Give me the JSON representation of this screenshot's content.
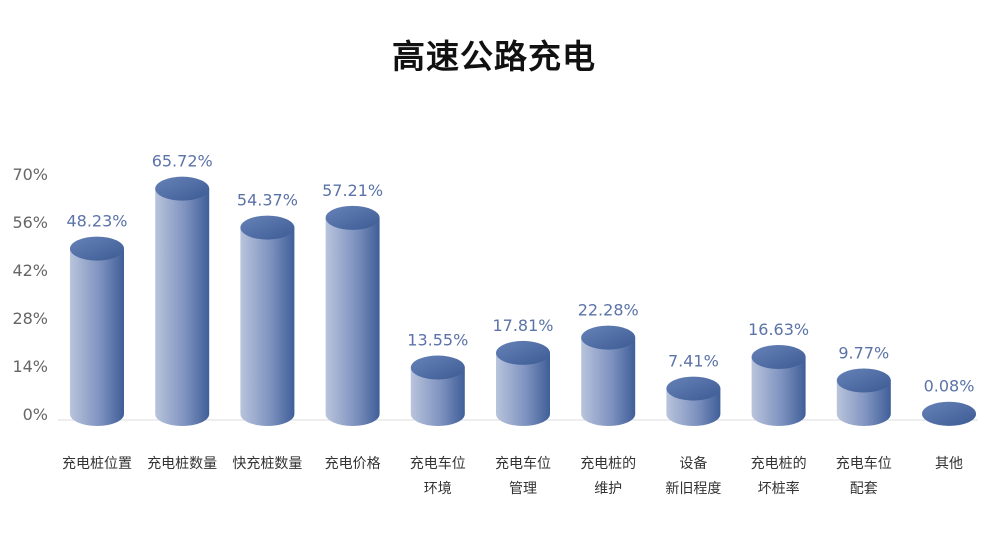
{
  "chart_data": {
    "type": "bar",
    "title": "高速公路充电",
    "xlabel": "",
    "ylabel": "",
    "ylim": [
      0,
      70
    ],
    "yticks": [
      0,
      14,
      28,
      42,
      56,
      70
    ],
    "ytick_labels": [
      "0%",
      "14%",
      "28%",
      "42%",
      "56%",
      "70%"
    ],
    "categories": [
      [
        "充电桩位置"
      ],
      [
        "充电桩数量"
      ],
      [
        "快充桩数量"
      ],
      [
        "充电价格"
      ],
      [
        "充电车位",
        "环境"
      ],
      [
        "充电车位",
        "管理"
      ],
      [
        "充电桩的",
        "维护"
      ],
      [
        "设备",
        "新旧程度"
      ],
      [
        "充电桩的",
        "坏桩率"
      ],
      [
        "充电车位",
        "配套"
      ],
      [
        "其他"
      ]
    ],
    "values": [
      48.23,
      65.72,
      54.37,
      57.21,
      13.55,
      17.81,
      22.28,
      7.41,
      16.63,
      9.77,
      0.08
    ],
    "value_labels": [
      "48.23%",
      "65.72%",
      "54.37%",
      "57.21%",
      "13.55%",
      "17.81%",
      "22.28%",
      "7.41%",
      "16.63%",
      "9.77%",
      "0.08%"
    ],
    "grid": false,
    "legend": "none",
    "colors": {
      "bar_light": "#b9c4dc",
      "bar_dark": "#3f5e98",
      "top": "#4a6aa5",
      "label": "#5b73a8"
    }
  }
}
